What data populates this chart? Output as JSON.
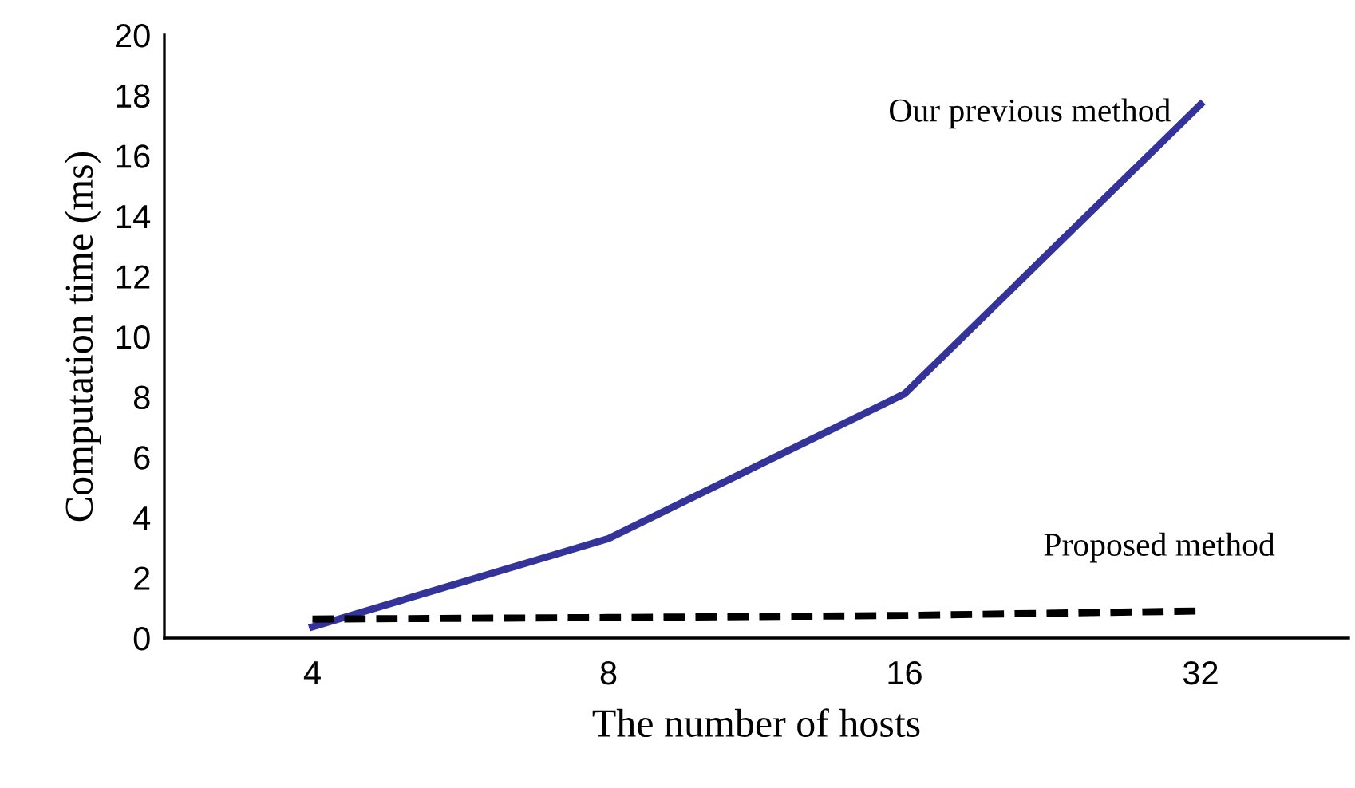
{
  "chart_data": {
    "type": "line",
    "xlabel": "The number of hosts",
    "ylabel": "Computation time (ms)",
    "categories": [
      "4",
      "8",
      "16",
      "32"
    ],
    "series": [
      {
        "name": "Our previous method",
        "color": "#333399",
        "values": [
          0.37,
          3.3,
          8.1,
          17.7
        ],
        "line_style": "solid"
      },
      {
        "name": "Proposed method",
        "color": "#000000",
        "values": [
          0.63,
          0.68,
          0.75,
          0.9
        ],
        "line_style": "dashed"
      }
    ],
    "ylim": [
      0,
      20
    ],
    "yticks": [
      0,
      2,
      4,
      6,
      8,
      10,
      12,
      14,
      16,
      18,
      20
    ],
    "grid": false,
    "legend": false,
    "marker": "none"
  }
}
